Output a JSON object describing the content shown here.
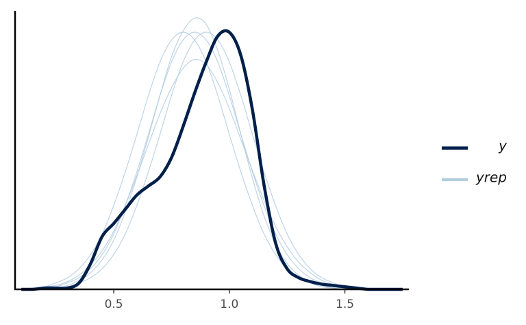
{
  "chart_data": {
    "type": "line",
    "x": [
      0.1,
      0.15,
      0.2,
      0.25,
      0.3,
      0.35,
      0.4,
      0.45,
      0.5,
      0.55,
      0.6,
      0.65,
      0.7,
      0.75,
      0.8,
      0.85,
      0.9,
      0.95,
      1.0,
      1.05,
      1.1,
      1.15,
      1.2,
      1.25,
      1.3,
      1.35,
      1.4,
      1.45,
      1.5,
      1.55,
      1.6,
      1.65,
      1.7,
      1.75
    ],
    "series": [
      {
        "name": "yrep",
        "color": "#b3cde0",
        "values": [
          [
            0,
            0,
            0.01,
            0.02,
            0.05,
            0.09,
            0.16,
            0.27,
            0.43,
            0.65,
            0.91,
            1.2,
            1.5,
            1.76,
            1.93,
            1.99,
            1.93,
            1.76,
            1.5,
            1.2,
            0.91,
            0.65,
            0.43,
            0.27,
            0.16,
            0.09,
            0.05,
            0.02,
            0.01,
            0,
            0,
            0,
            0,
            0
          ],
          [
            0,
            0,
            0,
            0.01,
            0.02,
            0.05,
            0.09,
            0.16,
            0.27,
            0.43,
            0.65,
            0.91,
            1.2,
            1.5,
            1.76,
            1.93,
            1.99,
            1.93,
            1.76,
            1.5,
            1.2,
            0.91,
            0.65,
            0.43,
            0.27,
            0.16,
            0.09,
            0.05,
            0.02,
            0.01,
            0,
            0,
            0,
            0
          ],
          [
            0,
            0.01,
            0.02,
            0.05,
            0.09,
            0.16,
            0.27,
            0.43,
            0.65,
            0.91,
            1.2,
            1.5,
            1.76,
            1.93,
            1.99,
            1.93,
            1.76,
            1.5,
            1.2,
            0.91,
            0.65,
            0.43,
            0.27,
            0.16,
            0.09,
            0.05,
            0.02,
            0.01,
            0,
            0,
            0,
            0,
            0,
            0
          ],
          [
            0,
            0.01,
            0.02,
            0.03,
            0.06,
            0.11,
            0.19,
            0.3,
            0.45,
            0.65,
            0.88,
            1.12,
            1.36,
            1.56,
            1.71,
            1.78,
            1.74,
            1.6,
            1.4,
            1.16,
            0.92,
            0.69,
            0.49,
            0.33,
            0.21,
            0.13,
            0.07,
            0.04,
            0.02,
            0.01,
            0,
            0,
            0,
            0
          ],
          [
            0,
            0,
            0,
            0.01,
            0.03,
            0.07,
            0.13,
            0.23,
            0.38,
            0.6,
            0.87,
            1.18,
            1.5,
            1.8,
            2.0,
            2.1,
            2.05,
            1.85,
            1.55,
            1.2,
            0.86,
            0.57,
            0.35,
            0.2,
            0.11,
            0.06,
            0.03,
            0.01,
            0,
            0,
            0,
            0,
            0,
            0
          ]
        ]
      },
      {
        "name": "y",
        "color": "#011f4b",
        "values": [
          0,
          0,
          0.01,
          0.01,
          0.01,
          0.05,
          0.2,
          0.41,
          0.51,
          0.62,
          0.73,
          0.8,
          0.87,
          1.02,
          1.26,
          1.52,
          1.76,
          1.96,
          1.99,
          1.81,
          1.39,
          0.81,
          0.36,
          0.16,
          0.09,
          0.06,
          0.04,
          0.03,
          0.02,
          0.01,
          0,
          0,
          0,
          0
        ]
      }
    ],
    "xlim": [
      0.073,
      1.777
    ],
    "xticks": [
      0.5,
      {
        "value": 1,
        "label": "1.0"
      },
      1.5
    ],
    "ylim": [
      0,
      2.16
    ]
  }
}
